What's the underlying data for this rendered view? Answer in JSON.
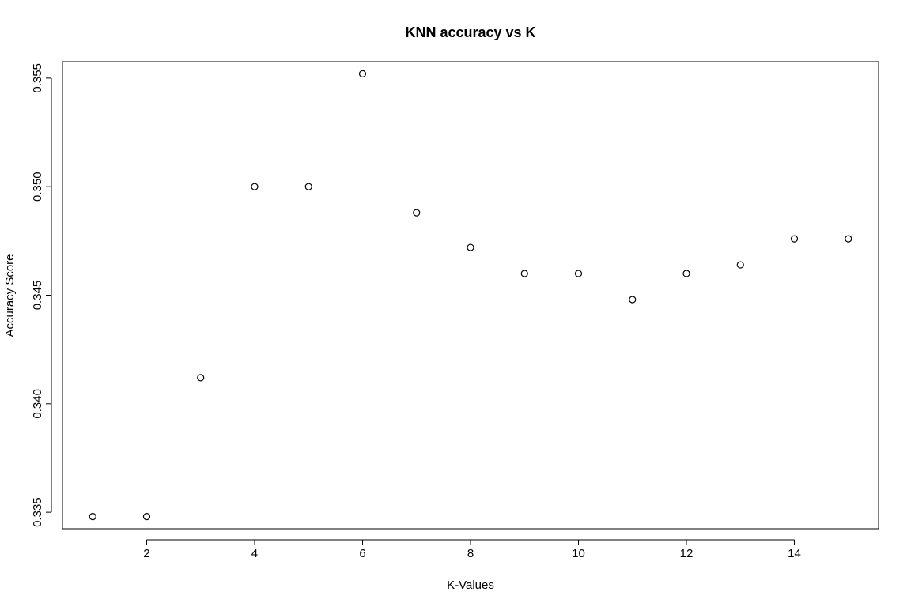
{
  "chart_data": {
    "type": "scatter",
    "title": "KNN accuracy vs K",
    "xlabel": "K-Values",
    "ylabel": "Accuracy Score",
    "xlim": [
      0.44,
      15.56
    ],
    "ylim": [
      0.33424,
      0.35576
    ],
    "xticks": [
      2,
      4,
      6,
      8,
      10,
      12,
      14
    ],
    "xtick_labels": [
      "2",
      "4",
      "6",
      "8",
      "10",
      "12",
      "14"
    ],
    "yticks": [
      0.335,
      0.34,
      0.345,
      0.35,
      0.355
    ],
    "ytick_labels": [
      "0.335",
      "0.340",
      "0.345",
      "0.350",
      "0.355"
    ],
    "grid": false,
    "series": [
      {
        "x": [
          1,
          2,
          3,
          4,
          5,
          6,
          7,
          8,
          9,
          10,
          11,
          12,
          13,
          14,
          15
        ],
        "y": [
          0.3348,
          0.3348,
          0.3412,
          0.35,
          0.35,
          0.3552,
          0.3488,
          0.3472,
          0.346,
          0.346,
          0.3448,
          0.346,
          0.3464,
          0.3476,
          0.3476
        ],
        "marker": "open-circle",
        "color": "#000000"
      }
    ]
  }
}
